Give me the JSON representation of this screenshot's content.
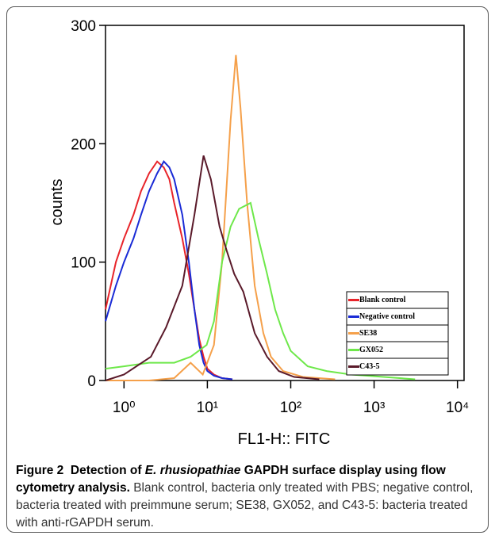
{
  "chart_data": {
    "type": "line",
    "xlabel": "FL1-H:: FITC",
    "ylabel": "counts",
    "xscale": "log",
    "xlim": [
      0.6,
      12000
    ],
    "ylim": [
      0,
      300
    ],
    "yticks": [
      0,
      100,
      200,
      300
    ],
    "xticks": [
      {
        "value": 1,
        "label": "10⁰"
      },
      {
        "value": 10,
        "label": "10¹"
      },
      {
        "value": 100,
        "label": "10²"
      },
      {
        "value": 1000,
        "label": "10³"
      },
      {
        "value": 10000,
        "label": "10⁴"
      }
    ],
    "legend": "lower right",
    "series": [
      {
        "name": "Blank control",
        "color": "#e8242a",
        "x": [
          0.6,
          0.8,
          1,
          1.3,
          1.6,
          2,
          2.5,
          3,
          3.5,
          4,
          5,
          6,
          7,
          8,
          9,
          10,
          12,
          15,
          20
        ],
        "values": [
          60,
          100,
          120,
          140,
          160,
          175,
          185,
          180,
          170,
          150,
          120,
          90,
          60,
          35,
          20,
          10,
          5,
          2,
          1
        ]
      },
      {
        "name": "Negative control",
        "color": "#1a2bd6",
        "x": [
          0.6,
          0.8,
          1,
          1.3,
          1.6,
          2,
          2.5,
          3,
          3.5,
          4,
          5,
          6,
          7,
          8,
          9,
          10,
          12,
          15,
          20
        ],
        "values": [
          50,
          80,
          100,
          120,
          140,
          160,
          175,
          185,
          180,
          170,
          140,
          100,
          60,
          30,
          15,
          8,
          4,
          2,
          1
        ]
      },
      {
        "name": "SE38",
        "color": "#f5a04a",
        "x": [
          0.6,
          2,
          4,
          6.3,
          8.8,
          12,
          15,
          19,
          22,
          25,
          30,
          37,
          47,
          58,
          81,
          140,
          340
        ],
        "values": [
          0,
          0,
          2,
          15,
          5,
          30,
          100,
          220,
          275,
          230,
          150,
          80,
          40,
          20,
          8,
          3,
          1
        ]
      },
      {
        "name": "GX052",
        "color": "#6ee84a",
        "x": [
          0.6,
          1,
          2,
          4,
          6.3,
          9.8,
          12,
          15,
          19,
          24,
          33,
          41,
          52,
          65,
          81,
          100,
          160,
          270,
          530,
          1300,
          3100
        ],
        "values": [
          10,
          12,
          15,
          15,
          20,
          30,
          50,
          100,
          130,
          145,
          150,
          120,
          90,
          60,
          40,
          25,
          12,
          8,
          5,
          3,
          1
        ]
      },
      {
        "name": "C43-5",
        "color": "#5a1a2a",
        "x": [
          0.6,
          1,
          2.1,
          3.2,
          5,
          7,
          9,
          11,
          14,
          17,
          21,
          27,
          37,
          52,
          72,
          110,
          220
        ],
        "values": [
          0,
          5,
          20,
          45,
          80,
          140,
          190,
          170,
          130,
          110,
          90,
          75,
          40,
          20,
          8,
          3,
          1
        ]
      }
    ]
  },
  "caption": {
    "label": "Figure 2",
    "title_before": "Detection of ",
    "title_italic": "E. rhusiopathiae",
    "title_after": " GAPDH surface display using flow cytometry analysis.",
    "text": "Blank control, bacteria only treated with PBS; negative control, bacteria treated with preimmune serum; SE38, GX052, and C43-5: bacteria treated with anti-rGAPDH serum."
  }
}
